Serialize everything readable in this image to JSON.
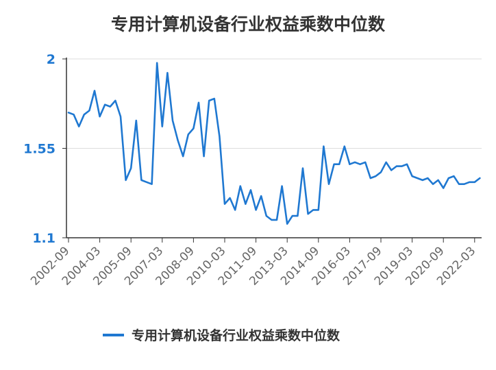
{
  "chart_data": {
    "type": "line",
    "title": "专用计算机设备行业权益乘数中位数",
    "xlabel": "",
    "ylabel": "",
    "ylim": [
      1.1,
      2.0
    ],
    "y_ticks": [
      "2",
      "1.55",
      "1.1"
    ],
    "x_tick_labels": [
      "2002-09",
      "2004-03",
      "2005-09",
      "2007-03",
      "2008-09",
      "2010-03",
      "2011-09",
      "2013-03",
      "2014-09",
      "2016-03",
      "2017-09",
      "2019-03",
      "2020-09",
      "2022-03"
    ],
    "grid": true,
    "legend_position": "bottom",
    "color": "#1f78d1",
    "series": [
      {
        "name": "专用计算机设备行业权益乘数中位数",
        "values": [
          1.73,
          1.72,
          1.66,
          1.72,
          1.74,
          1.84,
          1.71,
          1.77,
          1.76,
          1.79,
          1.71,
          1.39,
          1.45,
          1.69,
          1.39,
          1.38,
          1.37,
          1.98,
          1.66,
          1.93,
          1.69,
          1.59,
          1.51,
          1.62,
          1.65,
          1.78,
          1.51,
          1.79,
          1.8,
          1.61,
          1.27,
          1.3,
          1.24,
          1.36,
          1.27,
          1.34,
          1.24,
          1.31,
          1.21,
          1.19,
          1.19,
          1.36,
          1.17,
          1.21,
          1.21,
          1.45,
          1.22,
          1.24,
          1.24,
          1.56,
          1.37,
          1.47,
          1.47,
          1.56,
          1.47,
          1.48,
          1.47,
          1.48,
          1.4,
          1.41,
          1.43,
          1.48,
          1.44,
          1.46,
          1.46,
          1.47,
          1.41,
          1.4,
          1.39,
          1.4,
          1.37,
          1.39,
          1.35,
          1.4,
          1.41,
          1.37,
          1.37,
          1.38,
          1.38,
          1.4
        ]
      }
    ]
  }
}
